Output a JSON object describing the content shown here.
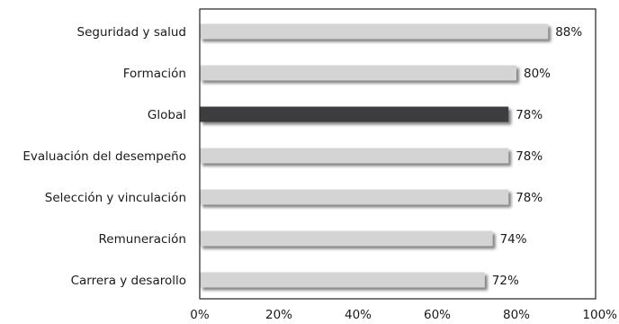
{
  "chart_data": {
    "type": "bar",
    "orientation": "horizontal",
    "title": "",
    "xlabel": "",
    "ylabel": "",
    "xlim": [
      0,
      100
    ],
    "ticks": [
      "0%",
      "20%",
      "40%",
      "60%",
      "80%",
      "100%"
    ],
    "tick_values": [
      0,
      20,
      40,
      60,
      80,
      100
    ],
    "grid": false,
    "legend": "none",
    "categories": [
      "Seguridad y salud",
      "Formación",
      "Global",
      "Evaluación del desempeño",
      "Selección y vinculación",
      "Remuneración",
      "Carrera y desarollo"
    ],
    "values": [
      88,
      80,
      78,
      78,
      78,
      74,
      72
    ],
    "value_labels": [
      "88%",
      "80%",
      "78%",
      "78%",
      "78%",
      "74%",
      "72%"
    ],
    "highlight_category": "Global",
    "colors": {
      "bar": "#d4d4d4",
      "bar_highlight": "#3c3e40",
      "shadow": "#6a6a6a",
      "axis": "#222222",
      "label_highlight": "#8a8a8a"
    }
  }
}
